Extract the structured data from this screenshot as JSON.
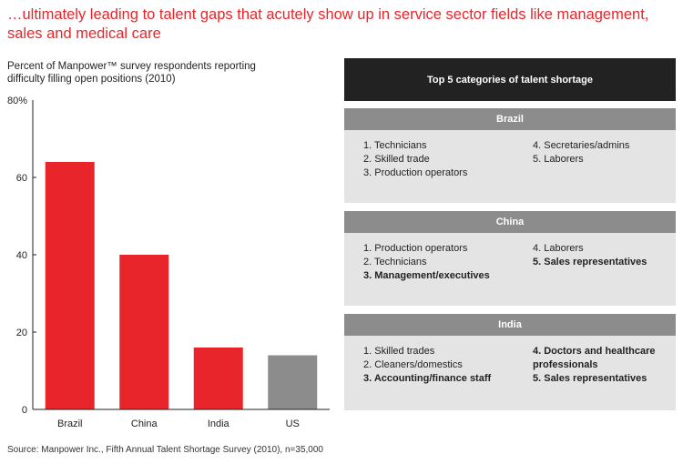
{
  "headline": "…ultimately leading to talent gaps that acutely show up in service sector fields like management, sales and medical care",
  "chart_data": {
    "type": "bar",
    "subtitle": "Percent of Manpower™ survey respondents reporting difficulty filling open positions (2010)",
    "categories": [
      "Brazil",
      "China",
      "India",
      "US"
    ],
    "values": [
      64,
      40,
      16,
      14
    ],
    "colors": [
      "#e8252a",
      "#e8252a",
      "#e8252a",
      "#8c8c8c"
    ],
    "ylim": [
      0,
      80
    ],
    "yticks": [
      0,
      20,
      40,
      60
    ],
    "ytick_top_label": "80%",
    "grid": false,
    "source": "Source: Manpower Inc., Fifth Annual Talent Shortage Survey (2010), n=35,000"
  },
  "table": {
    "title": "Top 5 categories of  talent shortage",
    "countries": [
      {
        "name": "Brazil",
        "left": [
          {
            "text": "1. Technicians",
            "bold": false
          },
          {
            "text": "2. Skilled trade",
            "bold": false
          },
          {
            "text": "3. Production operators",
            "bold": false
          }
        ],
        "right": [
          {
            "text": "4. Secretaries/admins",
            "bold": false
          },
          {
            "text": "5. Laborers",
            "bold": false
          }
        ]
      },
      {
        "name": "China",
        "left": [
          {
            "text": "1. Production operators",
            "bold": false
          },
          {
            "text": "2. Technicians",
            "bold": false
          },
          {
            "text": "3. Management/executives",
            "bold": true
          }
        ],
        "right": [
          {
            "text": "4. Laborers",
            "bold": false
          },
          {
            "text": "5. Sales representatives",
            "bold": true
          }
        ]
      },
      {
        "name": "India",
        "left": [
          {
            "text": "1. Skilled trades",
            "bold": false
          },
          {
            "text": "2. Cleaners/domestics",
            "bold": false
          },
          {
            "text": "3. Accounting/finance staff",
            "bold": true
          }
        ],
        "right": [
          {
            "text": "4. Doctors and healthcare professionals",
            "bold": true
          },
          {
            "text": "5. Sales representatives",
            "bold": true
          }
        ]
      }
    ]
  },
  "colors": {
    "accent_red": "#e8252a",
    "bar_gray": "#8c8c8c",
    "header_dark": "#222222",
    "panel_light": "#e4e4e4"
  }
}
